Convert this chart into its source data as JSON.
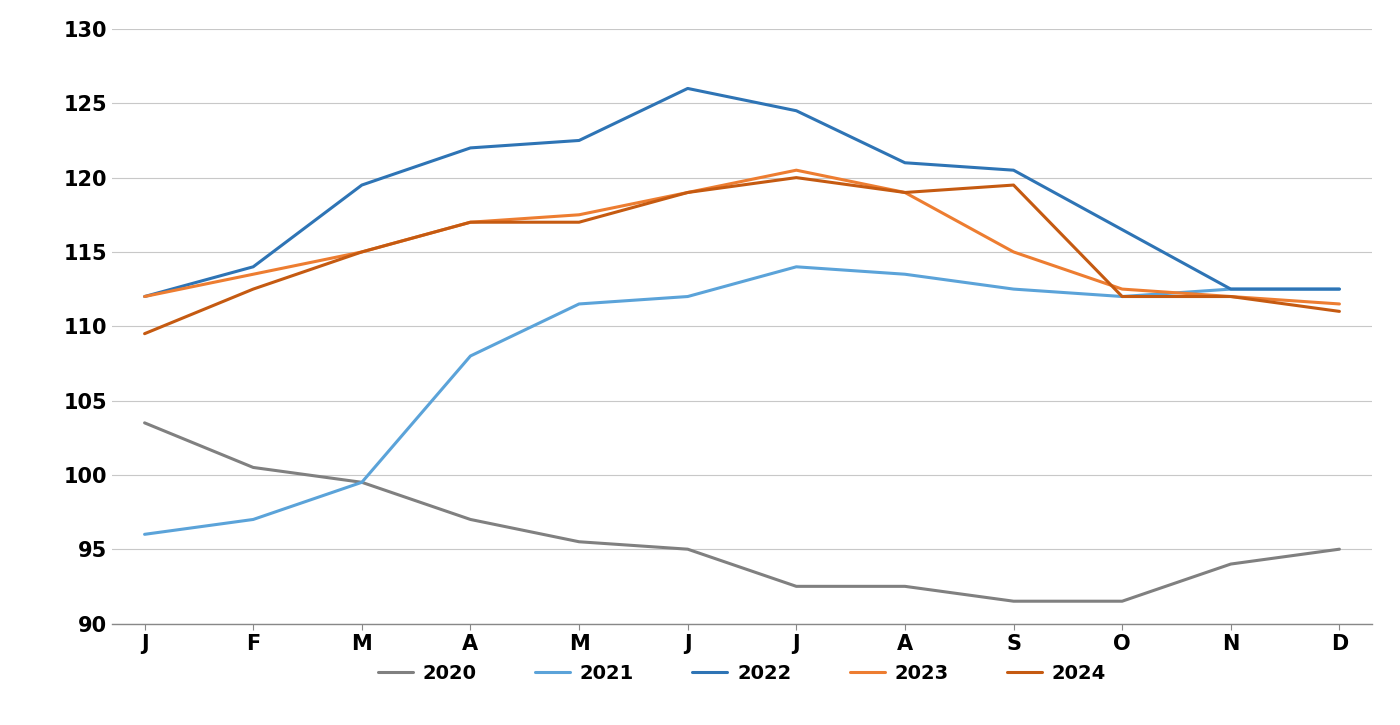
{
  "months": [
    "J",
    "F",
    "M",
    "A",
    "M",
    "J",
    "J",
    "A",
    "S",
    "O",
    "N",
    "D"
  ],
  "series": {
    "2020": [
      103.5,
      100.5,
      99.5,
      97.0,
      95.5,
      95.0,
      92.5,
      92.5,
      91.5,
      91.5,
      94.0,
      95.0
    ],
    "2021": [
      96.0,
      97.0,
      99.5,
      108.0,
      111.5,
      112.0,
      114.0,
      113.5,
      112.5,
      112.0,
      112.5,
      112.5
    ],
    "2022": [
      112.0,
      114.0,
      119.5,
      122.0,
      122.5,
      126.0,
      124.5,
      121.0,
      120.5,
      116.5,
      112.5,
      112.5
    ],
    "2023": [
      112.0,
      113.5,
      115.0,
      117.0,
      117.5,
      119.0,
      120.5,
      119.0,
      115.0,
      112.5,
      112.0,
      111.5
    ],
    "2024": [
      109.5,
      112.5,
      115.0,
      117.0,
      117.0,
      119.0,
      120.0,
      119.0,
      119.5,
      112.0,
      112.0,
      111.0
    ]
  },
  "colors": {
    "2020": "#808080",
    "2021": "#5BA3D9",
    "2022": "#2E74B5",
    "2023": "#ED7D31",
    "2024": "#C55A11"
  },
  "ylim": [
    90,
    130
  ],
  "yticks": [
    90,
    95,
    100,
    105,
    110,
    115,
    120,
    125,
    130
  ],
  "background_color": "#ffffff",
  "grid_color": "#c8c8c8",
  "line_width": 2.2
}
